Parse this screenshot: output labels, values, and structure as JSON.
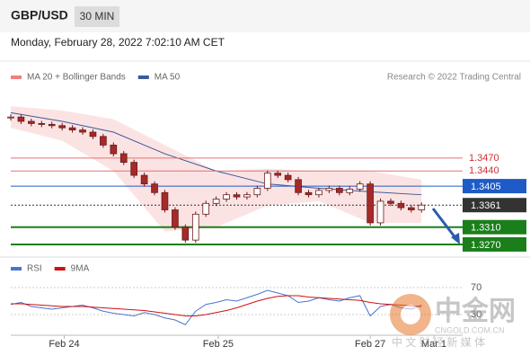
{
  "header": {
    "symbol": "GBP/USD",
    "timeframe": "30 MIN",
    "timestamp": "Monday, February 28, 2022 7:02:10 AM CET",
    "credit": "Research © 2022 Trading Central"
  },
  "watermark": {
    "name": "中金网",
    "site": "CNGOLD.COM.CN",
    "tagline": "中 文 财 经 新 媒 体"
  },
  "chart_data": [
    {
      "type": "candlestick",
      "x": [
        0,
        1,
        2,
        3,
        4,
        5,
        6,
        7,
        8,
        9,
        10,
        11,
        12,
        13,
        14,
        15,
        16,
        17,
        18,
        19,
        20,
        21,
        22,
        23,
        24,
        25,
        26,
        27,
        28,
        29,
        30,
        31,
        32,
        33,
        34,
        35,
        36,
        37,
        38,
        39,
        40
      ],
      "values": [
        1.3565,
        1.3555,
        1.355,
        1.3548,
        1.3545,
        1.354,
        1.3535,
        1.353,
        1.352,
        1.35,
        1.348,
        1.346,
        1.343,
        1.341,
        1.339,
        1.335,
        1.331,
        1.328,
        1.334,
        1.3365,
        1.3375,
        1.3385,
        1.338,
        1.3385,
        1.34,
        1.3435,
        1.343,
        1.342,
        1.339,
        1.3385,
        1.3395,
        1.34,
        1.339,
        1.3398,
        1.341,
        1.332,
        1.337,
        1.3365,
        1.3355,
        1.335,
        1.3361
      ],
      "up_color": "#ffffff",
      "down_color": "#a52a2a",
      "xlim": [
        0,
        44
      ],
      "xticks": [
        {
          "value": 5.2,
          "label": "Feb 24"
        },
        {
          "value": 20.2,
          "label": "Feb 25"
        },
        {
          "value": 35,
          "label": "Feb 27"
        },
        {
          "value": 41.2,
          "label": "Mar 1"
        }
      ],
      "ylim": [
        1.3247,
        1.3632
      ],
      "series": [
        {
          "name": "MA 20 + Bollinger Bands",
          "color": "#f08080",
          "x": [
            0,
            5,
            10,
            15,
            20,
            25,
            30,
            35,
            40
          ],
          "upper": [
            1.359,
            1.358,
            1.356,
            1.35,
            1.344,
            1.3445,
            1.344,
            1.344,
            1.342
          ],
          "lower": [
            1.354,
            1.351,
            1.344,
            1.33,
            1.331,
            1.336,
            1.337,
            1.332,
            1.332
          ]
        },
        {
          "name": "MA 50",
          "color": "#3a5a9a",
          "x": [
            0,
            5,
            10,
            15,
            20,
            25,
            30,
            35,
            40
          ],
          "values": [
            1.3575,
            1.3555,
            1.353,
            1.348,
            1.344,
            1.341,
            1.34,
            1.3392,
            1.3385
          ]
        }
      ],
      "levels": [
        {
          "value": 1.347,
          "label": "1.3470",
          "color": "#e57373",
          "style": "text"
        },
        {
          "value": 1.344,
          "label": "1.3440",
          "color": "#e57373",
          "style": "text"
        },
        {
          "value": 1.3405,
          "label": "1.3405",
          "color": "#1e5bc6",
          "style": "box"
        },
        {
          "value": 1.3361,
          "label": "1.3361",
          "color": "#333333",
          "style": "dotted"
        },
        {
          "value": 1.331,
          "label": "1.3310",
          "color": "#1a7f1a",
          "style": "box"
        },
        {
          "value": 1.327,
          "label": "1.3270",
          "color": "#1a7f1a",
          "style": "box"
        }
      ]
    },
    {
      "type": "line",
      "x": [
        0,
        1,
        2,
        3,
        4,
        5,
        6,
        7,
        8,
        9,
        10,
        11,
        12,
        13,
        14,
        15,
        16,
        17,
        18,
        19,
        20,
        21,
        22,
        23,
        24,
        25,
        26,
        27,
        28,
        29,
        30,
        31,
        32,
        33,
        34,
        35,
        36,
        37,
        38,
        39,
        40
      ],
      "xlim": [
        0,
        44
      ],
      "ylim": [
        0,
        100
      ],
      "yticks": [
        70,
        30
      ],
      "series": [
        {
          "name": "RSI",
          "color": "#4a74d0",
          "values": [
            45,
            48,
            42,
            40,
            38,
            40,
            42,
            44,
            40,
            35,
            32,
            30,
            28,
            33,
            30,
            25,
            22,
            15,
            35,
            45,
            48,
            52,
            50,
            55,
            60,
            66,
            62,
            58,
            48,
            50,
            55,
            52,
            50,
            55,
            58,
            28,
            42,
            45,
            40,
            38,
            44
          ]
        },
        {
          "name": "9MA",
          "color": "#d01010",
          "values": [
            46,
            46,
            45,
            44,
            43,
            42,
            42,
            42,
            41,
            40,
            39,
            38,
            37,
            36,
            34,
            32,
            30,
            28,
            28,
            30,
            33,
            36,
            40,
            45,
            50,
            54,
            57,
            58,
            58,
            56,
            55,
            54,
            53,
            52,
            51,
            48,
            46,
            45,
            44,
            43,
            42
          ]
        }
      ]
    }
  ]
}
